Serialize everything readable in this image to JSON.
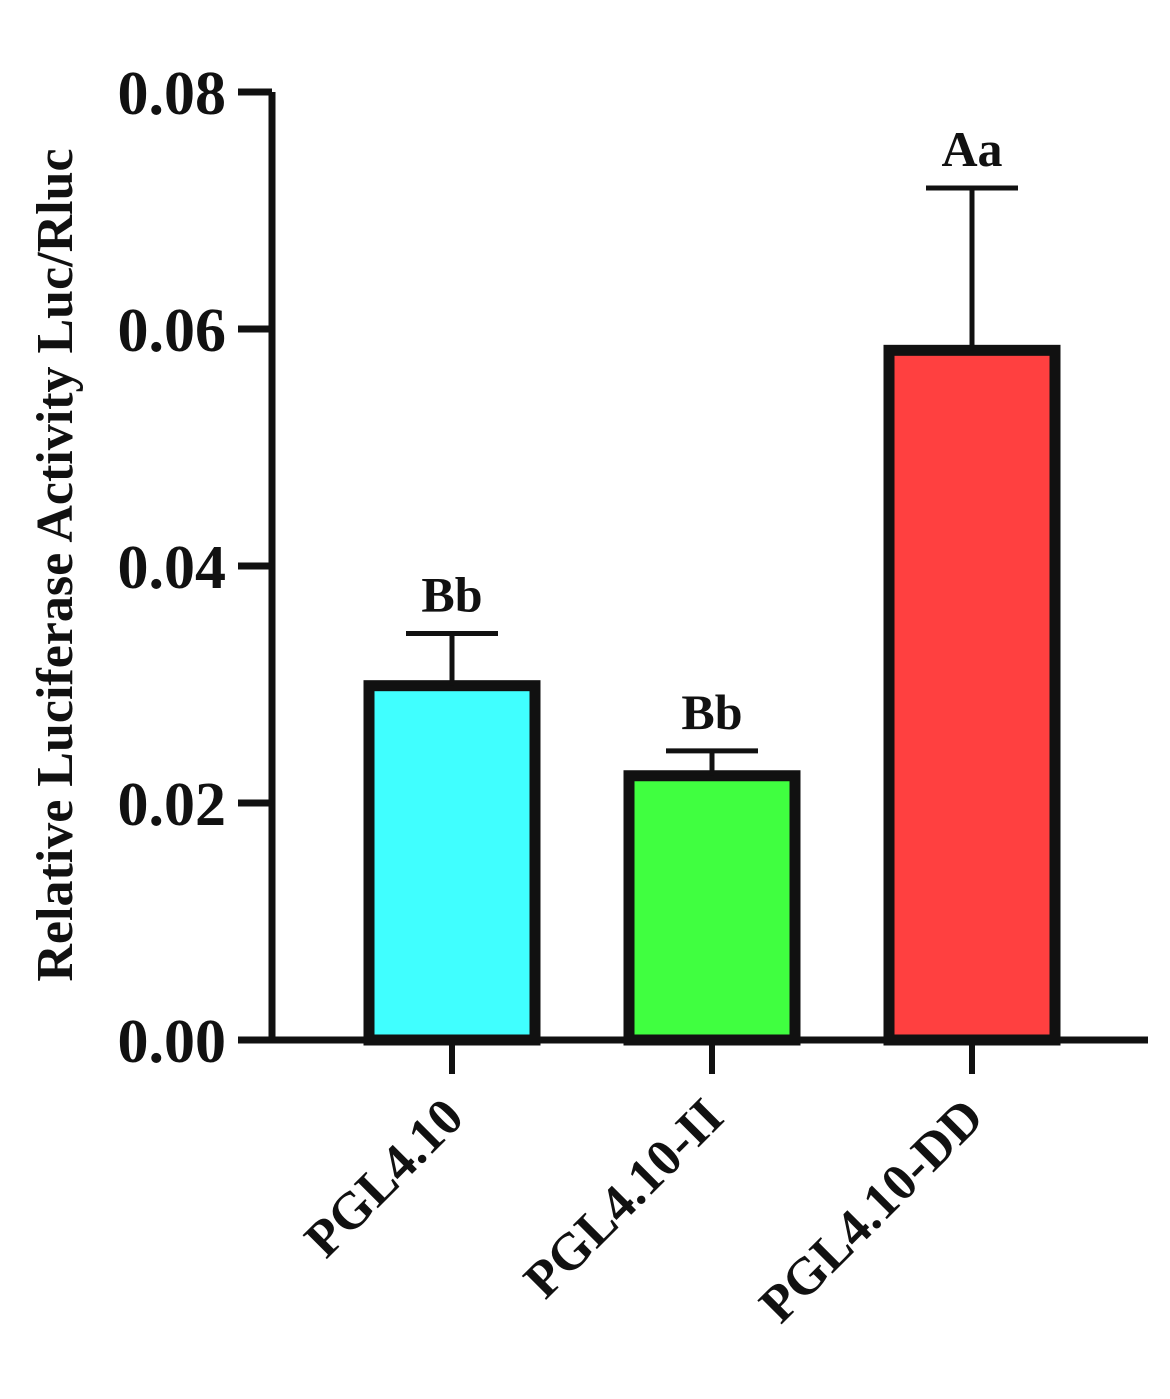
{
  "chart_data": {
    "type": "bar",
    "title": "",
    "xlabel": "",
    "ylabel": "Relative Luciferase Activity Luc/Rluc",
    "categories": [
      "PGL4.10",
      "PGL4.10-II",
      "PGL4.10-DD"
    ],
    "values": [
      0.0299,
      0.0223,
      0.0582
    ],
    "errors": [
      0.0044,
      0.0021,
      0.0137
    ],
    "significance_labels": [
      "Bb",
      "Bb",
      "Aa"
    ],
    "colors": [
      "#40ffff",
      "#40ff40",
      "#ff4040"
    ],
    "ylim": [
      0,
      0.08
    ],
    "yticks": [
      0,
      0.02,
      0.04,
      0.06,
      0.08
    ],
    "ytick_labels": [
      "0.00",
      "0.02",
      "0.04",
      "0.06",
      "0.08"
    ],
    "grid": false,
    "legend": "none"
  }
}
